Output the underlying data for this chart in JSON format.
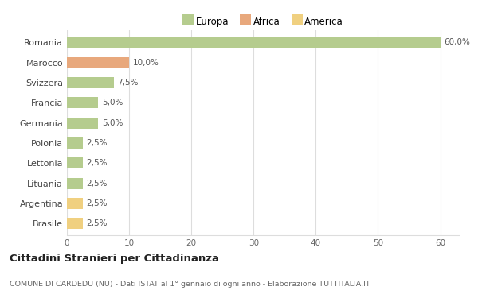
{
  "categories": [
    "Romania",
    "Marocco",
    "Svizzera",
    "Francia",
    "Germania",
    "Polonia",
    "Lettonia",
    "Lituania",
    "Argentina",
    "Brasile"
  ],
  "values": [
    60.0,
    10.0,
    7.5,
    5.0,
    5.0,
    2.5,
    2.5,
    2.5,
    2.5,
    2.5
  ],
  "colors": [
    "#b5cc8e",
    "#e8a87c",
    "#b5cc8e",
    "#b5cc8e",
    "#b5cc8e",
    "#b5cc8e",
    "#b5cc8e",
    "#b5cc8e",
    "#f0d080",
    "#f0d080"
  ],
  "labels": [
    "60,0%",
    "10,0%",
    "7,5%",
    "5,0%",
    "5,0%",
    "2,5%",
    "2,5%",
    "2,5%",
    "2,5%",
    "2,5%"
  ],
  "legend_labels": [
    "Europa",
    "Africa",
    "America"
  ],
  "legend_colors": [
    "#b5cc8e",
    "#e8a87c",
    "#f0d080"
  ],
  "xlim": [
    0,
    63
  ],
  "xticks": [
    0,
    10,
    20,
    30,
    40,
    50,
    60
  ],
  "title": "Cittadini Stranieri per Cittadinanza",
  "subtitle": "COMUNE DI CARDEDU (NU) - Dati ISTAT al 1° gennaio di ogni anno - Elaborazione TUTTITALIA.IT",
  "background_color": "#ffffff",
  "grid_color": "#dddddd"
}
